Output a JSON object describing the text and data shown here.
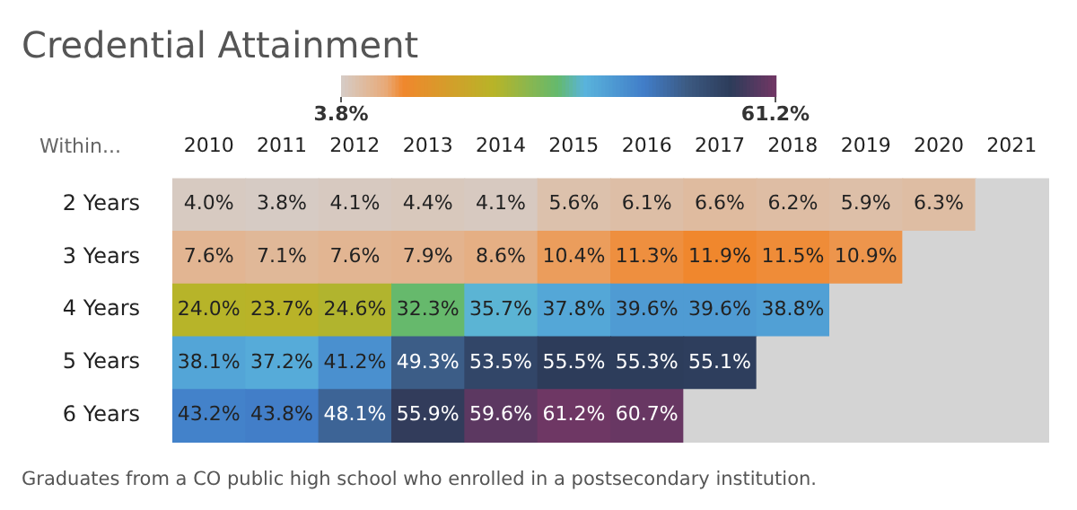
{
  "chart_data": {
    "type": "heatmap",
    "title": "Credential Attainment",
    "ylabel": "Within...",
    "categories": [
      "2010",
      "2011",
      "2012",
      "2013",
      "2014",
      "2015",
      "2016",
      "2017",
      "2018",
      "2019",
      "2020",
      "2021"
    ],
    "y_categories": [
      "2 Years",
      "3 Years",
      "4 Years",
      "5 Years",
      "6 Years"
    ],
    "cells": [
      [
        4.0,
        3.8,
        4.1,
        4.4,
        4.1,
        5.6,
        6.1,
        6.6,
        6.2,
        5.9,
        6.3,
        null
      ],
      [
        7.6,
        7.1,
        7.6,
        7.9,
        8.6,
        10.4,
        11.3,
        11.9,
        11.5,
        10.9,
        null,
        null
      ],
      [
        24.0,
        23.7,
        24.6,
        32.3,
        35.7,
        37.8,
        39.6,
        39.6,
        38.8,
        null,
        null,
        null
      ],
      [
        38.1,
        37.2,
        41.2,
        49.3,
        53.5,
        55.5,
        55.3,
        55.1,
        null,
        null,
        null,
        null
      ],
      [
        43.2,
        43.8,
        48.1,
        55.9,
        59.6,
        61.2,
        60.7,
        null,
        null,
        null,
        null,
        null
      ]
    ],
    "cell_labels": [
      [
        "4.0%",
        "3.8%",
        "4.1%",
        "4.4%",
        "4.1%",
        "5.6%",
        "6.1%",
        "6.6%",
        "6.2%",
        "5.9%",
        "6.3%",
        null
      ],
      [
        "7.6%",
        "7.1%",
        "7.6%",
        "7.9%",
        "8.6%",
        "10.4%",
        "11.3%",
        "11.9%",
        "11.5%",
        "10.9%",
        null,
        null
      ],
      [
        "24.0%",
        "23.7%",
        "24.6%",
        "32.3%",
        "35.7%",
        "37.8%",
        "39.6%",
        "39.6%",
        "38.8%",
        null,
        null,
        null
      ],
      [
        "38.1%",
        "37.2%",
        "41.2%",
        "49.3%",
        "53.5%",
        "55.5%",
        "55.3%",
        "55.1%",
        null,
        null,
        null,
        null
      ],
      [
        "43.2%",
        "43.8%",
        "48.1%",
        "55.9%",
        "59.6%",
        "61.2%",
        "60.7%",
        null,
        null,
        null,
        null,
        null
      ]
    ],
    "clim": [
      3.8,
      61.2
    ],
    "cticks": [
      {
        "value": 3.8,
        "label": "3.8%"
      },
      {
        "value": 61.2,
        "label": "61.2%"
      }
    ],
    "annotations": [
      "Graduates from a CO public high school who enrolled in a postsecondary institution."
    ]
  }
}
